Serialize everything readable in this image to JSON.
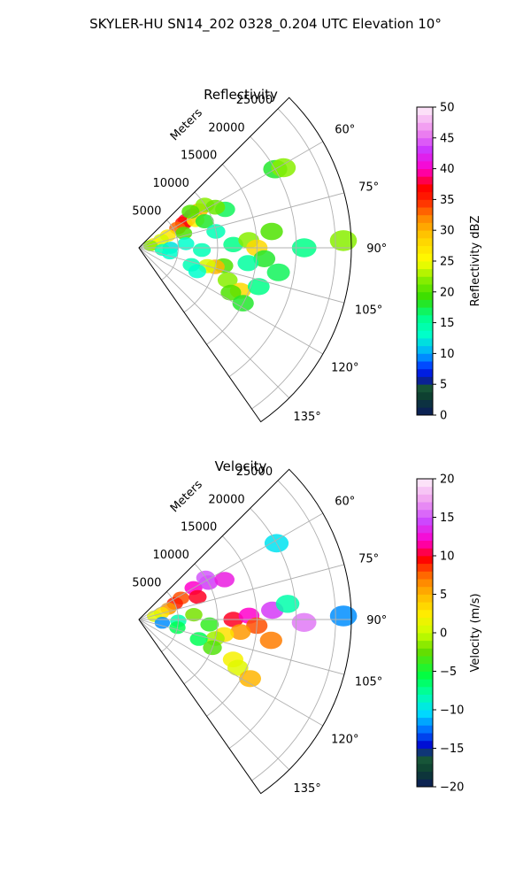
{
  "figure": {
    "suptitle": "SKYLER-HU  SN14_202  0328_0.204 UTC Elevation 10°"
  },
  "chart_data": [
    {
      "type": "heatmap",
      "title": "Reflectivity",
      "projection": "polar-sector",
      "range_label": "Meters",
      "range_ticks": [
        5000,
        10000,
        15000,
        20000,
        25000
      ],
      "range_tick_labels": [
        "5000",
        "10000",
        "15000",
        "20000",
        "25000"
      ],
      "rmax": 27000,
      "azimuth_range_deg": [
        45,
        145
      ],
      "azimuth_ticks": [
        60,
        75,
        90,
        105,
        120,
        135
      ],
      "azimuth_tick_labels": [
        "60°",
        "75°",
        "90°",
        "105°",
        "120°",
        "135°"
      ],
      "grid": true,
      "colorbar": {
        "label": "Reflectivity dBZ",
        "vmin": 0,
        "vmax": 50,
        "ticks": [
          0,
          5,
          10,
          15,
          20,
          25,
          30,
          35,
          40,
          45,
          50
        ],
        "tick_labels": [
          "0",
          "5",
          "10",
          "15",
          "20",
          "25",
          "30",
          "35",
          "40",
          "45",
          "50"
        ]
      },
      "cells": [
        {
          "az": 60,
          "r": 7000,
          "v": 38
        },
        {
          "az": 59,
          "r": 8000,
          "v": 42
        },
        {
          "az": 61,
          "r": 6500,
          "v": 36
        },
        {
          "az": 63,
          "r": 5500,
          "v": 33
        },
        {
          "az": 58,
          "r": 9000,
          "v": 30
        },
        {
          "az": 57,
          "r": 10000,
          "v": 22
        },
        {
          "az": 64,
          "r": 8000,
          "v": 26
        },
        {
          "az": 55,
          "r": 8000,
          "v": 20
        },
        {
          "az": 67,
          "r": 4000,
          "v": 27
        },
        {
          "az": 70,
          "r": 3000,
          "v": 24
        },
        {
          "az": 75,
          "r": 2000,
          "v": 26
        },
        {
          "az": 80,
          "r": 1500,
          "v": 22
        },
        {
          "az": 72,
          "r": 6000,
          "v": 20
        },
        {
          "az": 68,
          "r": 9000,
          "v": 18
        },
        {
          "az": 66,
          "r": 12000,
          "v": 17
        },
        {
          "az": 62,
          "r": 11000,
          "v": 21
        },
        {
          "az": 60,
          "r": 20000,
          "v": 18
        },
        {
          "az": 61,
          "r": 21000,
          "v": 22
        },
        {
          "az": 78,
          "r": 10000,
          "v": 14
        },
        {
          "az": 85,
          "r": 6000,
          "v": 13
        },
        {
          "az": 90,
          "r": 4000,
          "v": 12
        },
        {
          "az": 95,
          "r": 3000,
          "v": 14
        },
        {
          "az": 100,
          "r": 4000,
          "v": 13
        },
        {
          "az": 92,
          "r": 8000,
          "v": 14
        },
        {
          "az": 88,
          "r": 12000,
          "v": 16
        },
        {
          "az": 86,
          "r": 14000,
          "v": 22
        },
        {
          "az": 90,
          "r": 15000,
          "v": 28
        },
        {
          "az": 83,
          "r": 17000,
          "v": 20
        },
        {
          "az": 95,
          "r": 16000,
          "v": 18
        },
        {
          "az": 98,
          "r": 14000,
          "v": 15
        },
        {
          "az": 102,
          "r": 11000,
          "v": 20
        },
        {
          "az": 104,
          "r": 10000,
          "v": 30
        },
        {
          "az": 105,
          "r": 9000,
          "v": 24
        },
        {
          "az": 108,
          "r": 7000,
          "v": 14
        },
        {
          "az": 112,
          "r": 8000,
          "v": 13
        },
        {
          "az": 110,
          "r": 12000,
          "v": 22
        },
        {
          "az": 113,
          "r": 14000,
          "v": 28
        },
        {
          "az": 116,
          "r": 13000,
          "v": 20
        },
        {
          "az": 118,
          "r": 15000,
          "v": 18
        },
        {
          "az": 108,
          "r": 16000,
          "v": 16
        },
        {
          "az": 100,
          "r": 18000,
          "v": 17
        },
        {
          "az": 90,
          "r": 21000,
          "v": 16
        },
        {
          "az": 88,
          "r": 26000,
          "v": 22
        }
      ]
    },
    {
      "type": "heatmap",
      "title": "Velocity",
      "projection": "polar-sector",
      "range_label": "Meters",
      "range_ticks": [
        5000,
        10000,
        15000,
        20000,
        25000
      ],
      "range_tick_labels": [
        "5000",
        "10000",
        "15000",
        "20000",
        "25000"
      ],
      "rmax": 27000,
      "azimuth_range_deg": [
        45,
        145
      ],
      "azimuth_ticks": [
        60,
        75,
        90,
        105,
        120,
        135
      ],
      "azimuth_tick_labels": [
        "60°",
        "75°",
        "90°",
        "105°",
        "120°",
        "135°"
      ],
      "grid": true,
      "colorbar": {
        "label": "Velocity (m/s)",
        "vmin": -20,
        "vmax": 20,
        "ticks": [
          -20,
          -15,
          -10,
          -5,
          0,
          5,
          10,
          15,
          20
        ],
        "tick_labels": [
          "−20",
          "−15",
          "−10",
          "−5",
          "0",
          "5",
          "10",
          "15",
          "20"
        ]
      },
      "cells": [
        {
          "az": 60,
          "r": 8000,
          "v": 12
        },
        {
          "az": 62,
          "r": 10000,
          "v": 14
        },
        {
          "az": 58,
          "r": 10000,
          "v": 15
        },
        {
          "az": 63,
          "r": 6000,
          "v": 8
        },
        {
          "az": 66,
          "r": 5000,
          "v": 9
        },
        {
          "az": 70,
          "r": 4000,
          "v": 6
        },
        {
          "az": 74,
          "r": 3000,
          "v": 3
        },
        {
          "az": 78,
          "r": 2000,
          "v": 1
        },
        {
          "az": 69,
          "r": 8000,
          "v": 10
        },
        {
          "az": 65,
          "r": 12000,
          "v": 13
        },
        {
          "az": 61,
          "r": 20000,
          "v": -10
        },
        {
          "az": 85,
          "r": 7000,
          "v": -2
        },
        {
          "az": 92,
          "r": 5000,
          "v": -8
        },
        {
          "az": 98,
          "r": 3000,
          "v": -12
        },
        {
          "az": 102,
          "r": 5000,
          "v": -6
        },
        {
          "az": 94,
          "r": 9000,
          "v": -4
        },
        {
          "az": 90,
          "r": 12000,
          "v": 10
        },
        {
          "az": 88,
          "r": 14000,
          "v": 12
        },
        {
          "az": 86,
          "r": 17000,
          "v": 14
        },
        {
          "az": 93,
          "r": 15000,
          "v": 8
        },
        {
          "az": 97,
          "r": 13000,
          "v": 6
        },
        {
          "az": 100,
          "r": 11000,
          "v": 3
        },
        {
          "az": 104,
          "r": 10000,
          "v": -1
        },
        {
          "az": 108,
          "r": 8000,
          "v": -6
        },
        {
          "az": 111,
          "r": 10000,
          "v": -3
        },
        {
          "az": 113,
          "r": 13000,
          "v": 2
        },
        {
          "az": 116,
          "r": 14000,
          "v": 1
        },
        {
          "az": 118,
          "r": 16000,
          "v": 5
        },
        {
          "az": 99,
          "r": 17000,
          "v": 7
        },
        {
          "az": 91,
          "r": 21000,
          "v": 16
        },
        {
          "az": 84,
          "r": 19000,
          "v": -8
        },
        {
          "az": 89,
          "r": 26000,
          "v": -12
        }
      ]
    }
  ]
}
